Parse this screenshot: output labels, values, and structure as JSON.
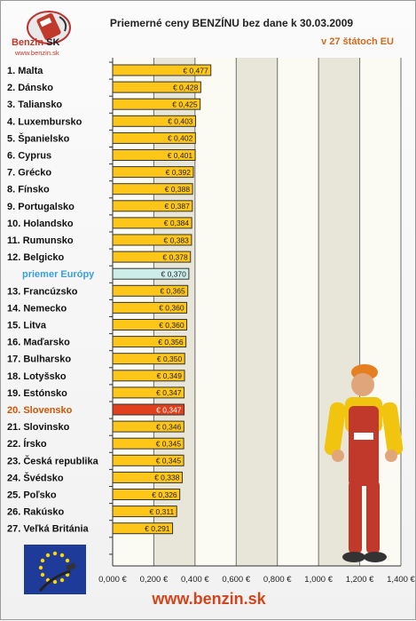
{
  "header": {
    "title": "Priemerné ceny BENZÍNU bez dane k 30.03.2009",
    "subtitle": "v 27 štátoch EU"
  },
  "logo": {
    "name_main": "Benzin",
    "name_suffix": "SK",
    "url": "www.benzin.sk"
  },
  "footer": {
    "url": "www.benzin.sk"
  },
  "colors": {
    "bar": "#ffc61a",
    "bar_highlight": "#e0401d",
    "bar_average": "#cdeee8",
    "label_highlight": "#d35400",
    "label_average": "#3aa0d8"
  },
  "chart_data": {
    "type": "bar",
    "orientation": "horizontal",
    "categories": [
      "1. Malta",
      "2. Dánsko",
      "3. Taliansko",
      "4. Luxembursko",
      "5. Španielsko",
      "6. Cyprus",
      "7. Grécko",
      "8. Fínsko",
      "9. Portugalsko",
      "10. Holandsko",
      "11. Rumunsko",
      "12. Belgicko",
      "priemer Európy",
      "13. Francúzsko",
      "14. Nemecko",
      "15. Litva",
      "16. Maďarsko",
      "17. Bulharsko",
      "18. Lotyšsko",
      "19. Estónsko",
      "20. Slovensko",
      "21. Slovinsko",
      "22. Írsko",
      "23. Česká republika",
      "24. Švédsko",
      "25. Poľsko",
      "26. Rakúsko",
      "27. Veľká Británia"
    ],
    "values": [
      0.477,
      0.428,
      0.425,
      0.403,
      0.402,
      0.401,
      0.392,
      0.388,
      0.387,
      0.384,
      0.383,
      0.378,
      0.37,
      0.365,
      0.36,
      0.36,
      0.356,
      0.35,
      0.349,
      0.347,
      0.347,
      0.346,
      0.345,
      0.345,
      0.338,
      0.326,
      0.311,
      0.291
    ],
    "value_labels": [
      "€ 0,477",
      "€ 0,428",
      "€ 0,425",
      "€ 0,403",
      "€ 0,402",
      "€ 0,401",
      "€ 0,392",
      "€ 0,388",
      "€ 0,387",
      "€ 0,384",
      "€ 0,383",
      "€ 0,378",
      "€ 0,370",
      "€ 0,365",
      "€ 0,360",
      "€ 0,360",
      "€ 0,356",
      "€ 0,350",
      "€ 0,349",
      "€ 0,347",
      "€ 0,347",
      "€ 0,346",
      "€ 0,345",
      "€ 0,345",
      "€ 0,338",
      "€ 0,326",
      "€ 0,311",
      "€ 0,291"
    ],
    "highlight_index": 20,
    "average_index": 12,
    "xlim": [
      0,
      1.4
    ],
    "x_ticks": [
      "0,000 €",
      "0,200 €",
      "0,400 €",
      "0,600 €",
      "0,800 €",
      "1,000 €",
      "1,200 €",
      "1,400 €"
    ],
    "grid": true,
    "title": "Priemerné ceny BENZÍNU bez dane k 30.03.2009",
    "subtitle": "v 27 štátoch EU"
  }
}
